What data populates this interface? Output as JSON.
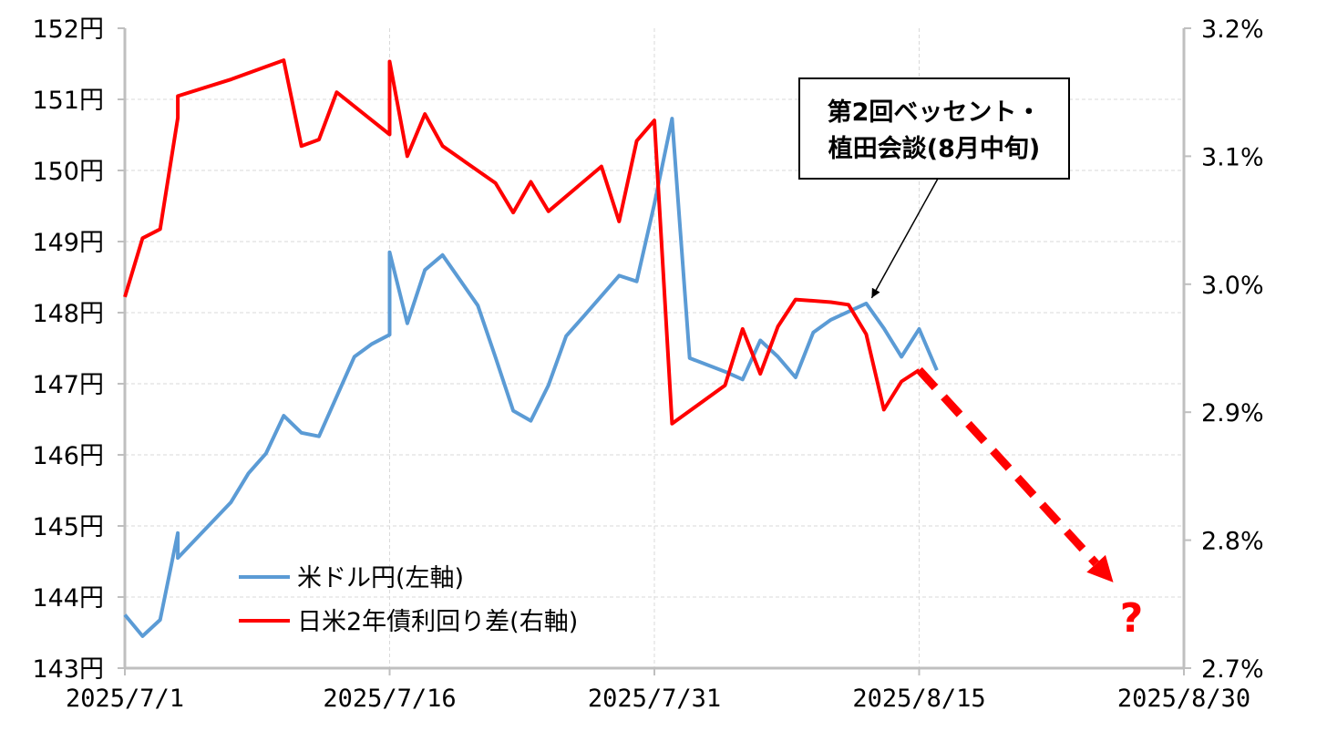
{
  "chart_data": {
    "type": "line",
    "x_axis": {
      "ticks": [
        "2025/7/1",
        "2025/7/16",
        "2025/7/31",
        "2025/8/15",
        "2025/8/30"
      ],
      "range": [
        "2025-07-01",
        "2025-08-30"
      ]
    },
    "y_left": {
      "ticks": [
        "143円",
        "144円",
        "145円",
        "146円",
        "147円",
        "148円",
        "149円",
        "150円",
        "151円",
        "152円"
      ],
      "range": [
        143,
        152
      ]
    },
    "y_right": {
      "ticks": [
        "2.7%",
        "2.8%",
        "2.9%",
        "3.0%",
        "3.1%",
        "3.2%"
      ],
      "range": [
        2.7,
        3.2
      ]
    },
    "grid": true,
    "legend_position": "bottom-left",
    "series": [
      {
        "name": "米ドル円(左軸)",
        "axis": "left",
        "color": "#5b9bd5",
        "points": [
          [
            "2025-07-01",
            143.75
          ],
          [
            "2025-07-02",
            143.45
          ],
          [
            "2025-07-03",
            143.68
          ],
          [
            "2025-07-04",
            144.9
          ],
          [
            "2025-07-04",
            144.55
          ],
          [
            "2025-07-07",
            145.33
          ],
          [
            "2025-07-08",
            145.74
          ],
          [
            "2025-07-09",
            146.02
          ],
          [
            "2025-07-10",
            146.55
          ],
          [
            "2025-07-11",
            146.31
          ],
          [
            "2025-07-12",
            146.26
          ],
          [
            "2025-07-14",
            147.38
          ],
          [
            "2025-07-15",
            147.56
          ],
          [
            "2025-07-16",
            147.69
          ],
          [
            "2025-07-16",
            148.85
          ],
          [
            "2025-07-17",
            147.85
          ],
          [
            "2025-07-18",
            148.6
          ],
          [
            "2025-07-19",
            148.81
          ],
          [
            "2025-07-21",
            148.1
          ],
          [
            "2025-07-22",
            147.37
          ],
          [
            "2025-07-23",
            146.62
          ],
          [
            "2025-07-24",
            146.48
          ],
          [
            "2025-07-25",
            146.98
          ],
          [
            "2025-07-26",
            147.67
          ],
          [
            "2025-07-27",
            147.95
          ],
          [
            "2025-07-29",
            148.52
          ],
          [
            "2025-07-30",
            148.44
          ],
          [
            "2025-07-31",
            149.53
          ],
          [
            "2025-08-01",
            150.73
          ],
          [
            "2025-08-02",
            147.36
          ],
          [
            "2025-08-04",
            147.17
          ],
          [
            "2025-08-05",
            147.06
          ],
          [
            "2025-08-06",
            147.61
          ],
          [
            "2025-08-07",
            147.38
          ],
          [
            "2025-08-08",
            147.09
          ],
          [
            "2025-08-09",
            147.72
          ],
          [
            "2025-08-10",
            147.9
          ],
          [
            "2025-08-12",
            148.13
          ],
          [
            "2025-08-13",
            147.78
          ],
          [
            "2025-08-14",
            147.38
          ],
          [
            "2025-08-15",
            147.77
          ],
          [
            "2025-08-16",
            147.19
          ]
        ]
      },
      {
        "name": "日米2年債利回り差(右軸)",
        "axis": "right",
        "color": "#ff0000",
        "points": [
          [
            "2025-07-01",
            2.99
          ],
          [
            "2025-07-02",
            3.036
          ],
          [
            "2025-07-03",
            3.043
          ],
          [
            "2025-07-04",
            3.13
          ],
          [
            "2025-07-04",
            3.147
          ],
          [
            "2025-07-07",
            3.16
          ],
          [
            "2025-07-09",
            3.17
          ],
          [
            "2025-07-10",
            3.175
          ],
          [
            "2025-07-11",
            3.108
          ],
          [
            "2025-07-12",
            3.113
          ],
          [
            "2025-07-13",
            3.15
          ],
          [
            "2025-07-16",
            3.117
          ],
          [
            "2025-07-16",
            3.174
          ],
          [
            "2025-07-17",
            3.1
          ],
          [
            "2025-07-18",
            3.133
          ],
          [
            "2025-07-19",
            3.108
          ],
          [
            "2025-07-22",
            3.079
          ],
          [
            "2025-07-23",
            3.056
          ],
          [
            "2025-07-24",
            3.08
          ],
          [
            "2025-07-25",
            3.057
          ],
          [
            "2025-07-28",
            3.092
          ],
          [
            "2025-07-29",
            3.049
          ],
          [
            "2025-07-30",
            3.112
          ],
          [
            "2025-07-31",
            3.128
          ],
          [
            "2025-08-01",
            2.891
          ],
          [
            "2025-08-04",
            2.921
          ],
          [
            "2025-08-05",
            2.965
          ],
          [
            "2025-08-06",
            2.93
          ],
          [
            "2025-08-07",
            2.967
          ],
          [
            "2025-08-08",
            2.988
          ],
          [
            "2025-08-10",
            2.986
          ],
          [
            "2025-08-11",
            2.984
          ],
          [
            "2025-08-12",
            2.961
          ],
          [
            "2025-08-13",
            2.902
          ],
          [
            "2025-08-14",
            2.924
          ],
          [
            "2025-08-15",
            2.933
          ]
        ]
      }
    ],
    "projection": {
      "style": "dashed-arrow",
      "color": "#ff0000",
      "from": [
        "2025-08-15",
        2.933
      ],
      "to": [
        "2025-08-26",
        2.767
      ],
      "label": "?"
    },
    "annotation": {
      "lines": [
        "第2回ベッセント・",
        "植田会談(8月中旬)"
      ],
      "points_to": [
        "2025-08-12",
        148.13
      ]
    }
  }
}
